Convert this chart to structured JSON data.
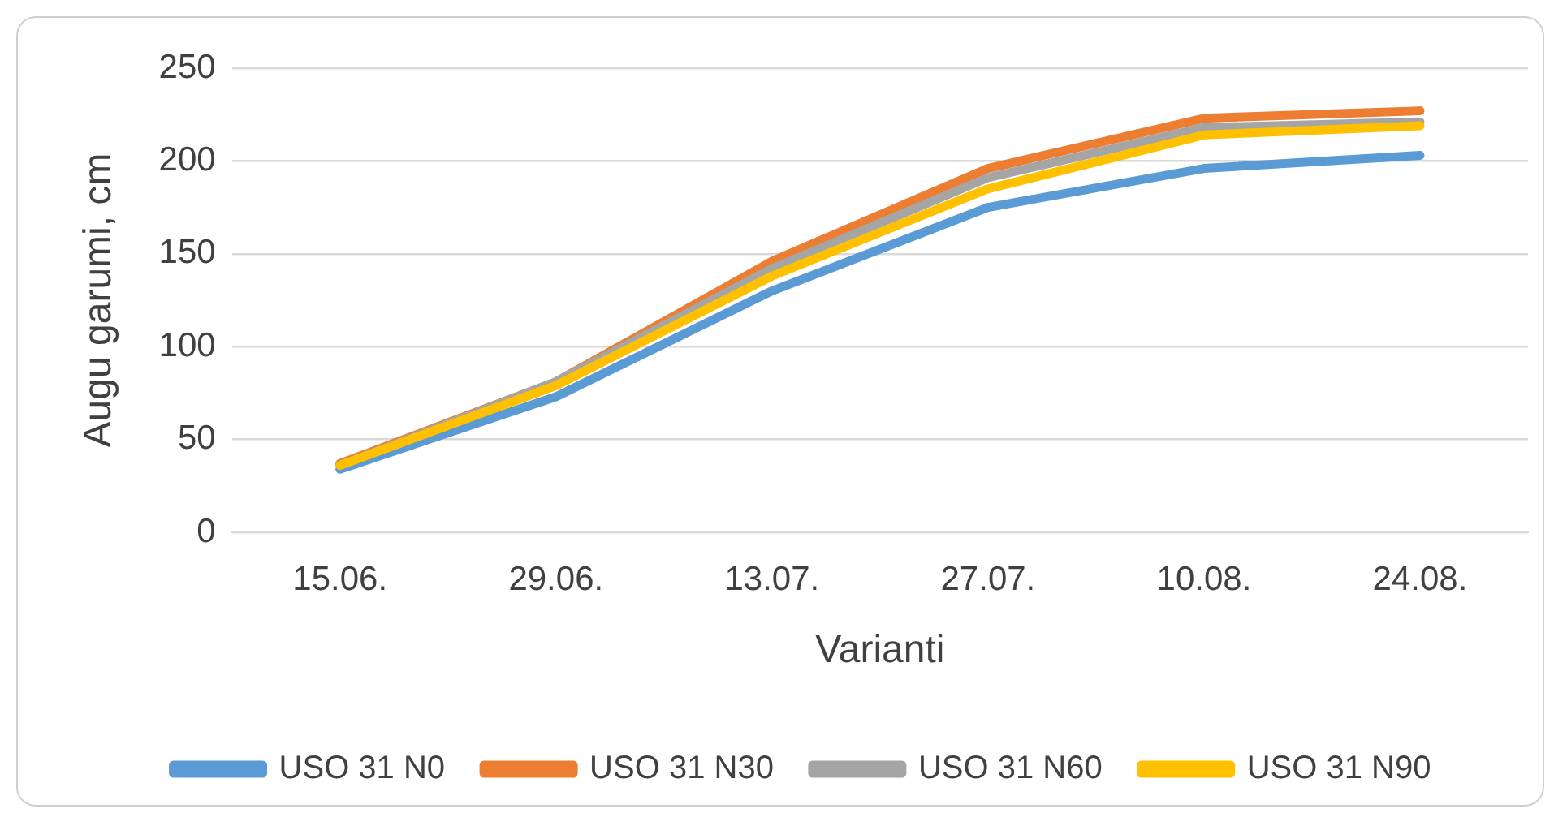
{
  "chart_data": {
    "type": "line",
    "xlabel": "Varianti",
    "ylabel": "Augu garumi, cm",
    "categories": [
      "15.06.",
      "29.06.",
      "13.07.",
      "27.07.",
      "10.08.",
      "24.08."
    ],
    "series": [
      {
        "name": "USO 31 N0",
        "color": "#5b9bd5",
        "values": [
          34,
          73,
          130,
          175,
          196,
          203
        ]
      },
      {
        "name": "USO 31 N30",
        "color": "#ed7d31",
        "values": [
          37,
          81,
          146,
          196,
          223,
          227
        ]
      },
      {
        "name": "USO 31 N60",
        "color": "#a5a5a5",
        "values": [
          36,
          81,
          142,
          191,
          218,
          221
        ]
      },
      {
        "name": "USO 31 N90",
        "color": "#ffc000",
        "values": [
          36,
          79,
          138,
          185,
          214,
          219
        ]
      }
    ],
    "ylim": [
      0,
      250
    ],
    "yticks": [
      0,
      50,
      100,
      150,
      200,
      250
    ],
    "grid": "y",
    "legend": "bottom",
    "marker": "none",
    "line_style": "solid"
  }
}
